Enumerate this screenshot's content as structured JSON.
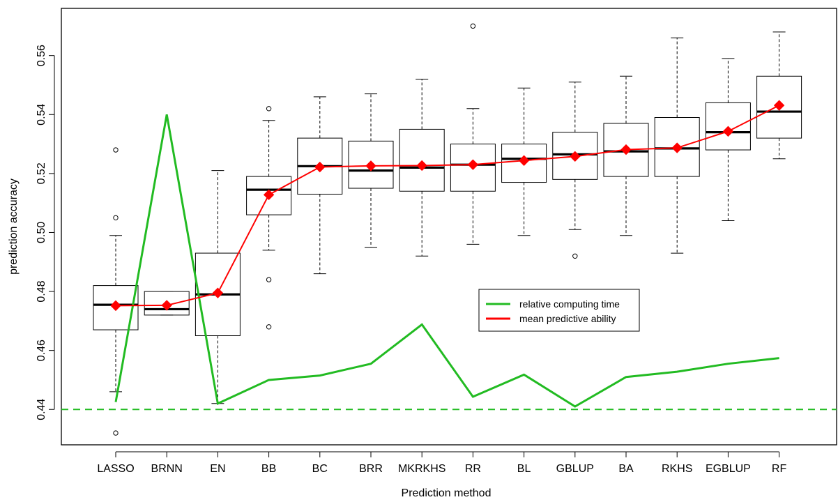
{
  "chart_data": {
    "type": "box-and-line",
    "xlabel": "Prediction method",
    "ylabel": "prediction accuracy",
    "ylim": [
      0.428,
      0.576
    ],
    "yticks": [
      0.44,
      0.46,
      0.48,
      0.5,
      0.52,
      0.54,
      0.56
    ],
    "ytick_labels": [
      "0.44",
      "0.46",
      "0.48",
      "0.50",
      "0.52",
      "0.54",
      "0.56"
    ],
    "categories": [
      "LASSO",
      "BRNN",
      "EN",
      "BB",
      "BC",
      "BRR",
      "MKRKHS",
      "RR",
      "BL",
      "GBLUP",
      "BA",
      "RKHS",
      "EGBLUP",
      "RF"
    ],
    "boxes": [
      {
        "whisker_low": 0.446,
        "q1": 0.467,
        "median": 0.4755,
        "q3": 0.482,
        "whisker_high": 0.499,
        "outliers": [
          0.528,
          0.505,
          0.432
        ]
      },
      {
        "whisker_low": 0.472,
        "q1": 0.472,
        "median": 0.474,
        "q3": 0.48,
        "whisker_high": 0.48,
        "outliers": []
      },
      {
        "whisker_low": 0.442,
        "q1": 0.465,
        "median": 0.479,
        "q3": 0.493,
        "whisker_high": 0.521,
        "outliers": []
      },
      {
        "whisker_low": 0.494,
        "q1": 0.506,
        "median": 0.5145,
        "q3": 0.519,
        "whisker_high": 0.538,
        "outliers": [
          0.542,
          0.484,
          0.468
        ]
      },
      {
        "whisker_low": 0.486,
        "q1": 0.513,
        "median": 0.5225,
        "q3": 0.532,
        "whisker_high": 0.546,
        "outliers": []
      },
      {
        "whisker_low": 0.495,
        "q1": 0.515,
        "median": 0.521,
        "q3": 0.531,
        "whisker_high": 0.547,
        "outliers": []
      },
      {
        "whisker_low": 0.492,
        "q1": 0.514,
        "median": 0.522,
        "q3": 0.535,
        "whisker_high": 0.552,
        "outliers": []
      },
      {
        "whisker_low": 0.496,
        "q1": 0.514,
        "median": 0.523,
        "q3": 0.53,
        "whisker_high": 0.542,
        "outliers": [
          0.57
        ]
      },
      {
        "whisker_low": 0.499,
        "q1": 0.517,
        "median": 0.525,
        "q3": 0.53,
        "whisker_high": 0.549,
        "outliers": []
      },
      {
        "whisker_low": 0.501,
        "q1": 0.518,
        "median": 0.5265,
        "q3": 0.534,
        "whisker_high": 0.551,
        "outliers": [
          0.492
        ]
      },
      {
        "whisker_low": 0.499,
        "q1": 0.519,
        "median": 0.5275,
        "q3": 0.537,
        "whisker_high": 0.553,
        "outliers": []
      },
      {
        "whisker_low": 0.493,
        "q1": 0.519,
        "median": 0.5285,
        "q3": 0.539,
        "whisker_high": 0.566,
        "outliers": []
      },
      {
        "whisker_low": 0.504,
        "q1": 0.528,
        "median": 0.534,
        "q3": 0.544,
        "whisker_high": 0.559,
        "outliers": []
      },
      {
        "whisker_low": 0.525,
        "q1": 0.532,
        "median": 0.541,
        "q3": 0.553,
        "whisker_high": 0.568,
        "outliers": []
      }
    ],
    "series": [
      {
        "name": "relative computing time",
        "color": "#22bb22",
        "values": [
          0.4425,
          0.54,
          0.442,
          0.45,
          0.4515,
          0.4555,
          0.4688,
          0.4443,
          0.4518,
          0.441,
          0.451,
          0.4528,
          0.4555,
          0.4574
        ]
      },
      {
        "name": "mean predictive ability",
        "color": "#ff0000",
        "values": [
          0.4752,
          0.4753,
          0.4795,
          0.5128,
          0.5222,
          0.5226,
          0.5227,
          0.523,
          0.5244,
          0.5258,
          0.5281,
          0.5287,
          0.5343,
          0.5431
        ]
      }
    ],
    "reference_line": {
      "y": 0.44,
      "color": "#22bb22",
      "style": "dashed"
    },
    "legend": {
      "placement": "center-right"
    },
    "grid": false
  }
}
